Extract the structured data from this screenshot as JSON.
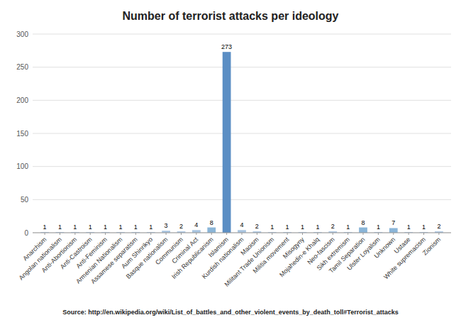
{
  "chart_data": {
    "type": "bar",
    "title": "Number of terrorist attacks per ideology",
    "categories": [
      "Anarchism",
      "Angolan nationalism",
      "Anti-Abortionism",
      "Anti-Castroism",
      "Anti-Feminism",
      "Armenian Nationalism",
      "Assamese separatism",
      "Aum Shinrikyo",
      "Basque nationalism",
      "Communism",
      "Criminal Act",
      "Irish Republicanism",
      "Islamism",
      "Kurdish nationalism",
      "Maoism",
      "Militant Trade Unionism",
      "Militia movement",
      "Misogyny",
      "Mojahedin-e Khalq",
      "Neo-fascism",
      "Sikh extremism",
      "Tamil Separation",
      "Ulster Loyalism",
      "Unknown",
      "Ustase",
      "White supremacism",
      "Zionism"
    ],
    "values": [
      1,
      1,
      1,
      1,
      1,
      1,
      1,
      1,
      3,
      2,
      4,
      8,
      273,
      4,
      2,
      1,
      1,
      1,
      1,
      2,
      1,
      8,
      1,
      7,
      1,
      1,
      2
    ],
    "colors": [
      "#a8c4e0",
      "#a8c4e0",
      "#a8c4e0",
      "#a8c4e0",
      "#a8c4e0",
      "#a8c4e0",
      "#a8c4e0",
      "#a8c4e0",
      "#a8c4e0",
      "#a8c4e0",
      "#a8c4e0",
      "#8ab5d8",
      "#5b8ec4",
      "#a8c4e0",
      "#a8c4e0",
      "#a8c4e0",
      "#a8c4e0",
      "#a8c4e0",
      "#a8c4e0",
      "#a8c4e0",
      "#a8c4e0",
      "#8ab5d8",
      "#a8c4e0",
      "#8ab5d8",
      "#a8c4e0",
      "#a8c4e0",
      "#a8c4e0"
    ],
    "ylim": [
      0,
      300
    ],
    "yticks": [
      0,
      50,
      100,
      150,
      200,
      250,
      300
    ],
    "grid": true,
    "data_labels": true,
    "annotations": [
      "Source: http://en.wikipedia.org/wiki/List_of_battles_and_other_violent_events_by_death_toll#Terrorist_attacks"
    ]
  }
}
